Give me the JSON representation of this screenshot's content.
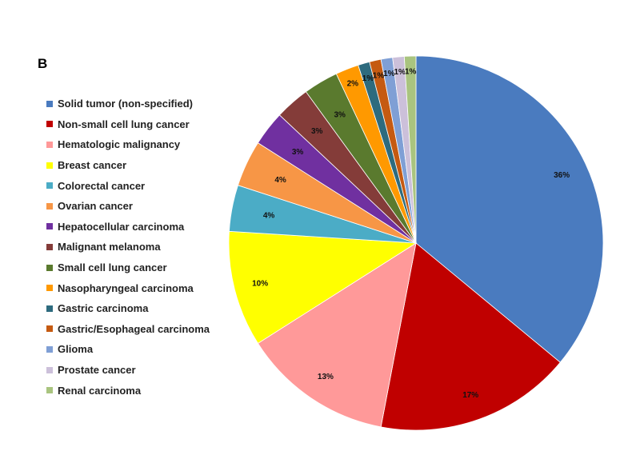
{
  "panel_label": "B",
  "chart_data": {
    "type": "pie",
    "title": "",
    "legend_position": "left",
    "start_angle_deg": 0,
    "direction": "clockwise",
    "slices": [
      {
        "name": "Solid tumor (non-specified)",
        "value": 36,
        "label": "36%",
        "color": "#4a7bbf"
      },
      {
        "name": "Non-small cell lung cancer",
        "value": 17,
        "label": "17%",
        "color": "#c00000"
      },
      {
        "name": "Hematologic malignancy",
        "value": 13,
        "label": "13%",
        "color": "#ff9999"
      },
      {
        "name": "Breast cancer",
        "value": 10,
        "label": "10%",
        "color": "#ffff00"
      },
      {
        "name": "Colorectal cancer",
        "value": 4,
        "label": "4%",
        "color": "#4bacc6"
      },
      {
        "name": "Ovarian cancer",
        "value": 4,
        "label": "4%",
        "color": "#f79646"
      },
      {
        "name": "Hepatocellular carcinoma",
        "value": 3,
        "label": "3%",
        "color": "#7030a0"
      },
      {
        "name": "Malignant melanoma",
        "value": 3,
        "label": "3%",
        "color": "#843c39"
      },
      {
        "name": "Small cell lung cancer",
        "value": 3,
        "label": "3%",
        "color": "#5a7a2e"
      },
      {
        "name": "Nasopharyngeal carcinoma",
        "value": 2,
        "label": "2%",
        "color": "#ff9900"
      },
      {
        "name": "Gastric carcinoma",
        "value": 1,
        "label": "1%",
        "color": "#2e6b7e"
      },
      {
        "name": "Gastric/Esophageal carcinoma",
        "value": 1,
        "label": "1%",
        "color": "#c55a11"
      },
      {
        "name": "Glioma",
        "value": 1,
        "label": "1%",
        "color": "#7f9fd5"
      },
      {
        "name": "Prostate cancer",
        "value": 1,
        "label": "1%",
        "color": "#ccc0da"
      },
      {
        "name": "Renal carcinoma",
        "value": 1,
        "label": "1%",
        "color": "#a9c47f"
      }
    ]
  }
}
